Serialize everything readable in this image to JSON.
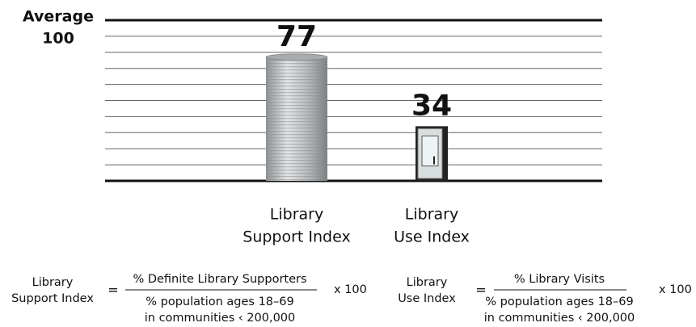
{
  "chart_data": {
    "type": "bar",
    "y_label": "Average",
    "categories": [
      [
        "Library",
        "Support Index"
      ],
      [
        "Library",
        "Use Index"
      ]
    ],
    "values": [
      77,
      34
    ],
    "colors": [
      "#a9acae",
      "#d9dede"
    ],
    "ylim": [
      0,
      100
    ],
    "yticks": [
      {
        "value": 0,
        "label": null
      },
      {
        "value": 10,
        "label": null
      },
      {
        "value": 20,
        "label": null
      },
      {
        "value": 30,
        "label": null
      },
      {
        "value": 40,
        "label": null
      },
      {
        "value": 50,
        "label": null
      },
      {
        "value": 60,
        "label": null
      },
      {
        "value": 70,
        "label": null
      },
      {
        "value": 80,
        "label": null
      },
      {
        "value": 90,
        "label": null
      },
      100
    ],
    "grid": true
  },
  "formulas": [
    {
      "lhs": [
        "Library",
        "Support Index"
      ],
      "operator": "=",
      "numerator": "% Definite Library Supporters",
      "denominator": [
        "% population ages 18–69",
        "in communities ‹ 200,000"
      ],
      "multiplier": "x 100"
    },
    {
      "lhs": [
        "Library",
        "Use Index"
      ],
      "operator": "=",
      "numerator": "% Library Visits",
      "denominator": [
        "% population ages 18–69",
        "in communities ‹ 200,000"
      ],
      "multiplier": "x 100"
    }
  ]
}
